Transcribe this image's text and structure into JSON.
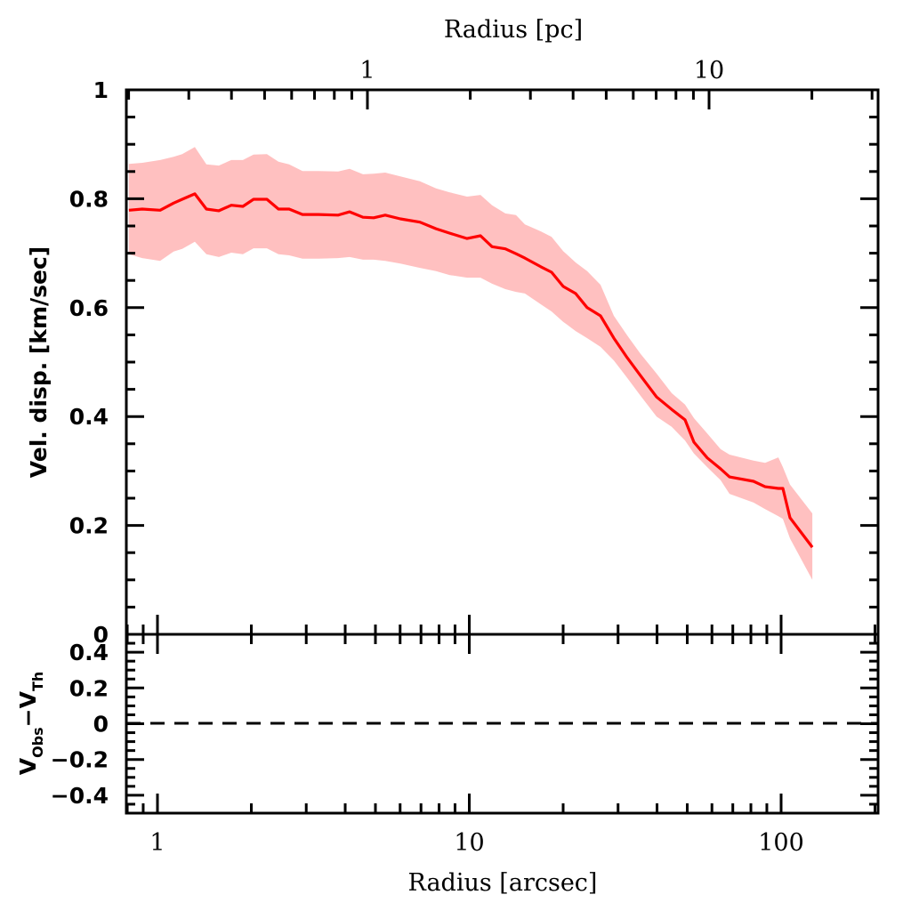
{
  "chart_data": [
    {
      "panel": "top",
      "type": "line",
      "xscale": "log",
      "xlabel": "Radius [arcsec]",
      "ylabel": "Vel. disp. [km/sec]",
      "top_xlabel": "Radius [pc]",
      "xlim": [
        0.79,
        209
      ],
      "ylim": [
        0,
        1
      ],
      "top_xlim_pc": [
        0.24,
        22
      ],
      "yticks_major": [
        0,
        0.2,
        0.4,
        0.6,
        0.8,
        1
      ],
      "ytick_labels": [
        "0",
        "0.2",
        "0.4",
        "0.6",
        "0.8",
        "1"
      ],
      "top_xtick_labels": [
        {
          "value": 1,
          "label": "1"
        },
        {
          "value": 10,
          "label": "10"
        }
      ],
      "colors": {
        "line": "#ff0000",
        "band": "#ffc0c0",
        "axes": "#000000"
      },
      "series": [
        {
          "name": "velocity dispersion",
          "x": [
            0.81,
            0.894,
            1.02,
            1.126,
            1.2,
            1.318,
            1.435,
            1.573,
            1.725,
            1.879,
            2.033,
            2.244,
            2.443,
            2.644,
            2.918,
            3.285,
            3.795,
            4.133,
            4.561,
            4.935,
            5.375,
            6.01,
            6.945,
            7.82,
            8.63,
            9.84,
            10.86,
            11.83,
            13.05,
            14.12,
            15.08,
            16.97,
            18.36,
            20.0,
            21.93,
            23.88,
            26.35,
            29.09,
            32.09,
            35.42,
            39.86,
            44.57,
            49.19,
            52.53,
            57.97,
            63.97,
            68.32,
            81.56,
            88.83,
            98.0,
            101.3,
            106.8,
            125.9
          ],
          "y": [
            0.779,
            0.781,
            0.779,
            0.792,
            0.799,
            0.809,
            0.781,
            0.778,
            0.788,
            0.786,
            0.799,
            0.799,
            0.781,
            0.781,
            0.771,
            0.771,
            0.77,
            0.776,
            0.766,
            0.765,
            0.77,
            0.763,
            0.757,
            0.745,
            0.737,
            0.727,
            0.732,
            0.712,
            0.708,
            0.699,
            0.691,
            0.675,
            0.665,
            0.639,
            0.626,
            0.6,
            0.585,
            0.544,
            0.508,
            0.475,
            0.436,
            0.413,
            0.394,
            0.353,
            0.324,
            0.304,
            0.289,
            0.281,
            0.271,
            0.268,
            0.268,
            0.214,
            0.16
          ],
          "upper": [
            0.864,
            0.866,
            0.871,
            0.877,
            0.882,
            0.895,
            0.863,
            0.861,
            0.871,
            0.871,
            0.881,
            0.882,
            0.868,
            0.863,
            0.851,
            0.851,
            0.85,
            0.855,
            0.845,
            0.846,
            0.848,
            0.841,
            0.832,
            0.819,
            0.812,
            0.804,
            0.807,
            0.788,
            0.773,
            0.77,
            0.753,
            0.74,
            0.73,
            0.704,
            0.683,
            0.667,
            0.642,
            0.585,
            0.549,
            0.515,
            0.479,
            0.443,
            0.422,
            0.397,
            0.369,
            0.34,
            0.33,
            0.319,
            0.315,
            0.325,
            0.307,
            0.275,
            0.222
          ],
          "lower": [
            0.698,
            0.691,
            0.686,
            0.703,
            0.708,
            0.721,
            0.698,
            0.693,
            0.701,
            0.698,
            0.709,
            0.709,
            0.698,
            0.696,
            0.69,
            0.69,
            0.691,
            0.693,
            0.688,
            0.688,
            0.686,
            0.681,
            0.673,
            0.667,
            0.66,
            0.655,
            0.655,
            0.644,
            0.634,
            0.629,
            0.626,
            0.606,
            0.593,
            0.574,
            0.557,
            0.544,
            0.528,
            0.503,
            0.471,
            0.438,
            0.4,
            0.381,
            0.356,
            0.332,
            0.307,
            0.283,
            0.258,
            0.242,
            0.23,
            0.217,
            0.212,
            0.176,
            0.1
          ]
        }
      ]
    },
    {
      "panel": "bottom",
      "type": "line",
      "xscale": "log",
      "xlabel": "Radius [arcsec]",
      "ylabel": "V_obs - V_Th",
      "ylabel_parts": {
        "v1": "V",
        "s1": "Obs",
        "minus": "−",
        "v2": "V",
        "s2": "Th"
      },
      "xlim": [
        0.79,
        209
      ],
      "ylim": [
        -0.5,
        0.5
      ],
      "yticks_major": [
        -0.4,
        -0.2,
        0,
        0.2,
        0.4
      ],
      "ytick_labels": [
        "−0.4",
        "−0.2",
        "0",
        "0.2",
        "0.4"
      ],
      "xtick_labels": [
        {
          "value": 1,
          "label": "1"
        },
        {
          "value": 10,
          "label": "10"
        },
        {
          "value": 100,
          "label": "100"
        }
      ],
      "reference_line": {
        "y": 0,
        "style": "dashed"
      },
      "series": []
    }
  ]
}
